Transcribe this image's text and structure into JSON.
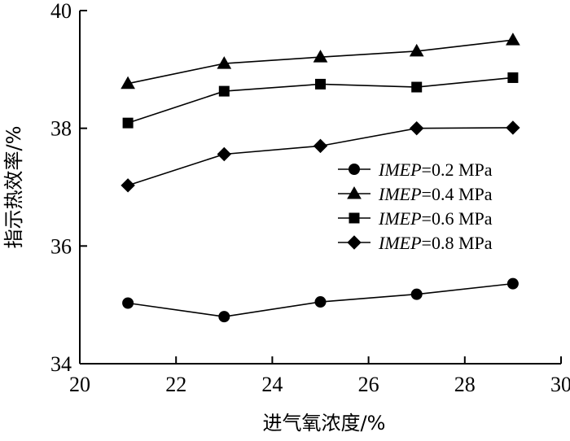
{
  "chart_data": {
    "type": "line",
    "xlabel": "进气氧浓度/%",
    "ylabel": "指示热效率/%",
    "xlim": [
      20,
      30
    ],
    "ylim": [
      34,
      40
    ],
    "xticks": [
      20,
      22,
      24,
      26,
      28,
      30
    ],
    "yticks": [
      34,
      36,
      38,
      40
    ],
    "grid": false,
    "legend_position": "right",
    "x": [
      21,
      23,
      25,
      27,
      29
    ],
    "series": [
      {
        "name": "IMEP=0.2 MPa",
        "name_italic": "IMEP",
        "name_rest": "=0.2 MPa",
        "marker": "circle",
        "values": [
          35.03,
          34.8,
          35.05,
          35.18,
          35.36
        ]
      },
      {
        "name": "IMEP=0.4 MPa",
        "name_italic": "IMEP",
        "name_rest": "=0.4 MPa",
        "marker": "triangle",
        "values": [
          38.76,
          39.1,
          39.21,
          39.31,
          39.5
        ]
      },
      {
        "name": "IMEP=0.6 MPa",
        "name_italic": "IMEP",
        "name_rest": "=0.6 MPa",
        "marker": "square",
        "values": [
          38.09,
          38.63,
          38.75,
          38.7,
          38.86
        ]
      },
      {
        "name": "IMEP=0.8 MPa",
        "name_italic": "IMEP",
        "name_rest": "=0.8 MPa",
        "marker": "diamond",
        "values": [
          37.03,
          37.56,
          37.7,
          38.0,
          38.01
        ]
      }
    ],
    "colors": {
      "line": "#000000",
      "background": "#ffffff"
    }
  }
}
